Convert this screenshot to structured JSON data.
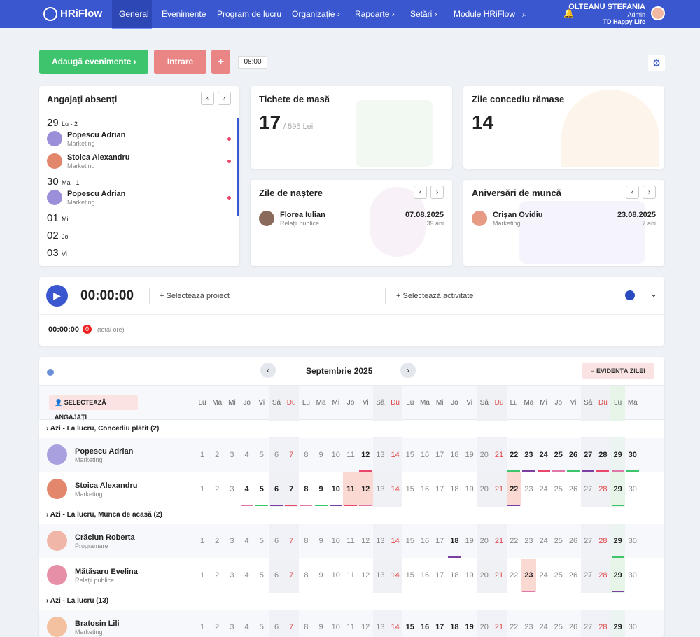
{
  "nav": {
    "logo": "HRiFlow",
    "items": [
      "General",
      "Evenimente",
      "Program de lucru",
      "Organizație",
      "Rapoarte",
      "Setări",
      "Module HRiFlow"
    ],
    "user": "OLTEANU ȘTEFANIA",
    "role": "Admin",
    "company": "TD Happy Life"
  },
  "toolbar": {
    "add": "Adaugă evenimente",
    "entry": "Intrare",
    "time": "08:00"
  },
  "absent": {
    "title": "Angajați absenți",
    "days": [
      {
        "day": "29",
        "label": "Lu - 2",
        "people": [
          {
            "name": "Popescu Adrian",
            "dept": "Marketing"
          },
          {
            "name": "Stoica Alexandru",
            "dept": "Marketing"
          }
        ]
      },
      {
        "day": "30",
        "label": "Ma - 1",
        "people": [
          {
            "name": "Popescu Adrian",
            "dept": "Marketing"
          }
        ]
      },
      {
        "day": "01",
        "label": "Mi",
        "people": []
      },
      {
        "day": "02",
        "label": "Jo",
        "people": []
      },
      {
        "day": "03",
        "label": "Vi",
        "people": []
      }
    ]
  },
  "meal": {
    "title": "Tichete de masă",
    "value": "17",
    "sub": "/ 595 Lei"
  },
  "leave": {
    "title": "Zile concediu rămase",
    "value": "14"
  },
  "birthdays": {
    "title": "Zile de naștere",
    "name": "Florea Iulian",
    "dept": "Relații publice",
    "date": "07.08.2025",
    "age": "39 ani"
  },
  "anniversaries": {
    "title": "Aniversări de muncă",
    "name": "Crișan Ovidiu",
    "dept": "Marketing",
    "date": "23.08.2025",
    "age": "7 ani"
  },
  "timer": {
    "time": "00:00:00",
    "project": "Selectează proiect",
    "activity": "Selectează activitate",
    "total": "00:00:00",
    "count": "0",
    "total_label": "(total ore)"
  },
  "calendar": {
    "month": "Septembrie 2025",
    "day_button": "EVIDENȚA ZILEI",
    "select": "SELECTEAZĂ ANGAJAȚI",
    "today": 29,
    "weekdays": [
      "Lu",
      "Ma",
      "Mi",
      "Jo",
      "Vi",
      "Sâ",
      "Du",
      "Lu",
      "Ma",
      "Mi",
      "Jo",
      "Vi",
      "Sâ",
      "Du",
      "Lu",
      "Ma",
      "Mi",
      "Jo",
      "Vi",
      "Sâ",
      "Du",
      "Lu",
      "Ma",
      "Mi",
      "Jo",
      "Vi",
      "Sâ",
      "Du",
      "Lu",
      "Ma"
    ],
    "days": [
      1,
      2,
      3,
      4,
      5,
      6,
      7,
      8,
      9,
      10,
      11,
      12,
      13,
      14,
      15,
      16,
      17,
      18,
      19,
      20,
      21,
      22,
      23,
      24,
      25,
      26,
      27,
      28,
      29,
      30
    ],
    "groups": [
      {
        "title": "Azi - La lucru, Concediu plătit (2)",
        "employees": [
          {
            "name": "Popescu Adrian",
            "dept": "Marketing",
            "bold": [
              12,
              22,
              23,
              24,
              25,
              26,
              27,
              28,
              29,
              30
            ],
            "shaded": []
          },
          {
            "name": "Stoica Alexandru",
            "dept": "Marketing",
            "bold": [
              4,
              5,
              6,
              7,
              8,
              9,
              10,
              11,
              12,
              22,
              29
            ],
            "shaded": [
              11,
              12,
              22
            ]
          }
        ]
      },
      {
        "title": "Azi - La lucru, Munca de acasă (2)",
        "employees": [
          {
            "name": "Crăciun Roberta",
            "dept": "Programare",
            "bold": [
              18,
              29
            ],
            "shaded": []
          },
          {
            "name": "Mătăsaru Evelina",
            "dept": "Relații publice",
            "bold": [
              23,
              29
            ],
            "shaded": [
              23
            ]
          }
        ]
      },
      {
        "title": "Azi - La lucru (13)",
        "employees": [
          {
            "name": "Bratosin Lili",
            "dept": "Marketing",
            "bold": [
              15,
              16,
              17,
              18,
              19,
              29
            ],
            "shaded": []
          }
        ]
      }
    ]
  }
}
